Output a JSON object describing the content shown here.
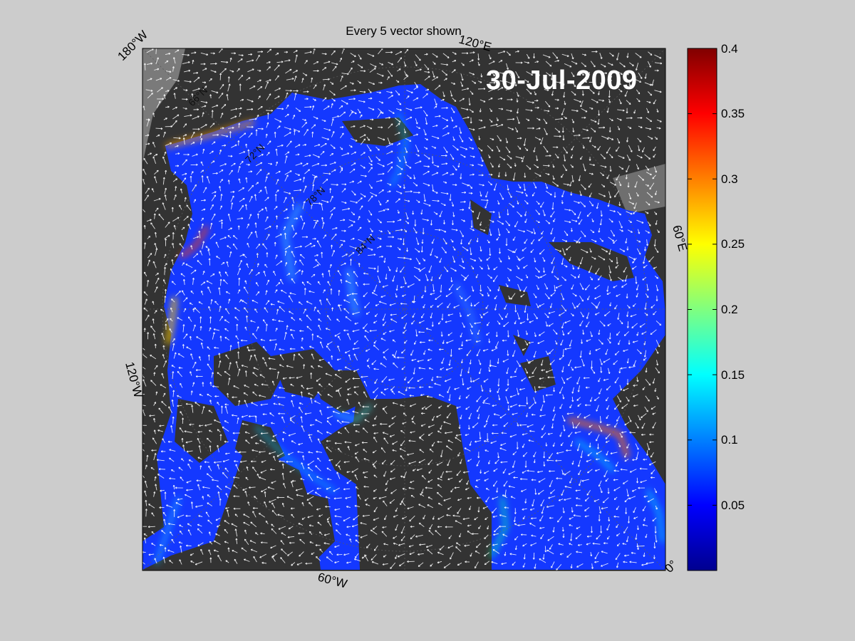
{
  "title": "Every 5 vector shown",
  "date": "30-Jul-2009",
  "longitude_labels": {
    "top_left": "180°W",
    "top_right": "120°E",
    "right": "60°E",
    "left": "120°W",
    "bottom": "60°W",
    "bottom_right": "0°"
  },
  "latitude_labels": [
    "66°N",
    "72°N",
    "78°N",
    "84°N"
  ],
  "colorbar": {
    "colormap": "jet",
    "min": 0,
    "max": 0.4,
    "ticks": [
      "0.4",
      "0.35",
      "0.3",
      "0.25",
      "0.2",
      "0.15",
      "0.1",
      "0.05"
    ]
  },
  "colors": {
    "background": "#cccccc",
    "land": "#333333",
    "ocean_outside_domain": "#7a7a7a",
    "ocean_base": "#1438ff",
    "vectors": "#ffffff"
  }
}
